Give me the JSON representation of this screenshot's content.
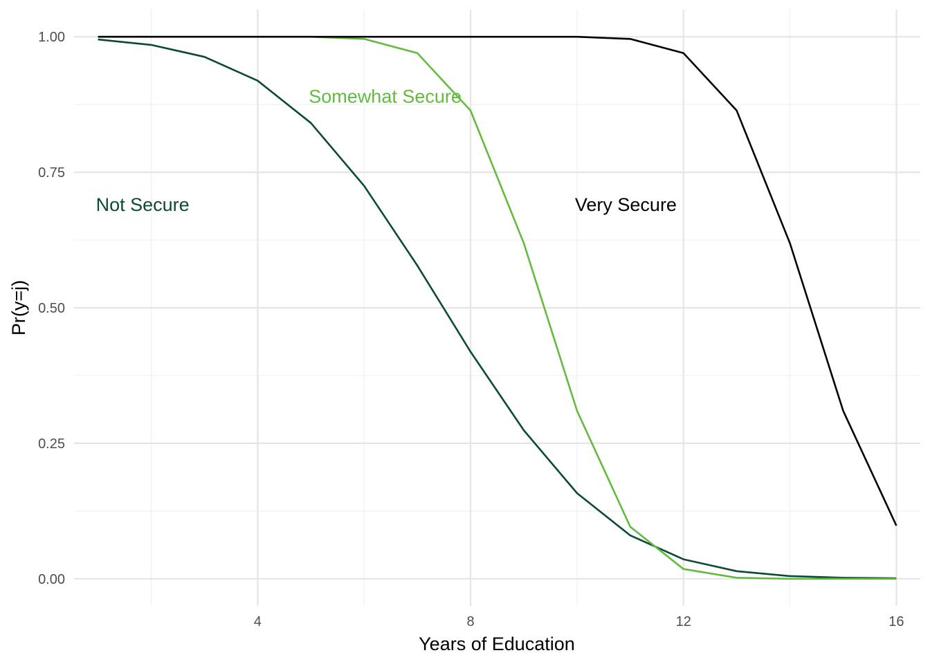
{
  "chart_data": {
    "type": "line",
    "xlabel": "Years of Education",
    "ylabel": "Pr(y=j)",
    "xlim": [
      0.55,
      16.45
    ],
    "ylim": [
      -0.05,
      1.05
    ],
    "x_ticks": [
      4,
      8,
      12,
      16
    ],
    "x_tick_labels": [
      "4",
      "8",
      "12",
      "16"
    ],
    "x_minor_ticks": [
      2,
      6,
      10,
      14
    ],
    "y_ticks": [
      0,
      0.25,
      0.5,
      0.75,
      1
    ],
    "y_tick_labels": [
      "0.00",
      "0.25",
      "0.50",
      "0.75",
      "1.00"
    ],
    "y_minor_ticks": [
      0.125,
      0.375,
      0.625,
      0.875
    ],
    "grid": true,
    "legend": "none",
    "x": [
      1,
      2,
      3,
      4,
      5,
      6,
      7,
      8,
      9,
      10,
      11,
      12,
      13,
      14,
      15,
      16
    ],
    "series": [
      {
        "name": "Not Secure",
        "color": "#0b4a37",
        "values": [
          0.995,
          0.985,
          0.963,
          0.919,
          0.841,
          0.725,
          0.578,
          0.419,
          0.274,
          0.158,
          0.08,
          0.036,
          0.014,
          0.005,
          0.002,
          0.001
        ],
        "label_pos": [
          1,
          0.69
        ]
      },
      {
        "name": "Somewhat Secure",
        "color": "#62bb3e",
        "values": [
          1.0,
          1.0,
          1.0,
          1.0,
          1.0,
          0.996,
          0.97,
          0.864,
          0.619,
          0.31,
          0.096,
          0.018,
          0.002,
          0.0,
          0.0,
          0.0
        ],
        "label_pos": [
          5,
          0.89
        ]
      },
      {
        "name": "Very Secure",
        "color": "#000000",
        "values": [
          1.0,
          1.0,
          1.0,
          1.0,
          1.0,
          1.0,
          1.0,
          1.0,
          1.0,
          1.0,
          0.996,
          0.97,
          0.864,
          0.619,
          0.31,
          0.098
        ],
        "label_pos": [
          10,
          0.69
        ]
      }
    ]
  }
}
